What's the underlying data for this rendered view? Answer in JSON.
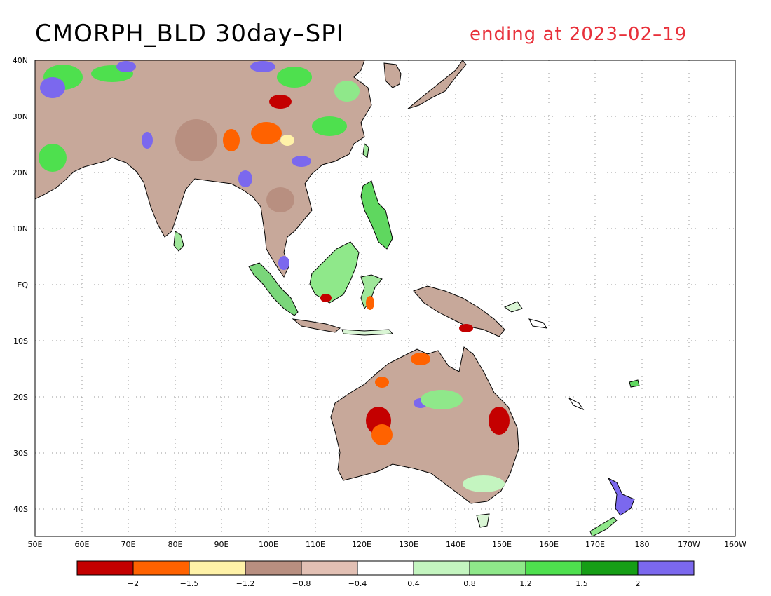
{
  "title": "CMORPH_BLD 30day–SPI",
  "date_label": "ending at 2023–02–19",
  "lat_labels": [
    "40N",
    "30N",
    "20N",
    "10N",
    "EQ",
    "10S",
    "20S",
    "30S",
    "40S"
  ],
  "lon_labels": [
    "50E",
    "60E",
    "70E",
    "80E",
    "90E",
    "100E",
    "110E",
    "120E",
    "130E",
    "140E",
    "150E",
    "160E",
    "170E",
    "180",
    "170W",
    "160W"
  ],
  "colorbar": {
    "colors": [
      "#c40000",
      "#ff6200",
      "#fff2a8",
      "#b88f80",
      "#e2c0b4",
      "#ffffff",
      "#c4f5c0",
      "#8fe88a",
      "#4ee04e",
      "#169e16",
      "#7b68ee"
    ],
    "tick_labels": [
      "−2",
      "−1.5",
      "−1.2",
      "−0.8",
      "−0.4",
      "0.4",
      "0.8",
      "1.2",
      "1.5",
      "2"
    ]
  }
}
